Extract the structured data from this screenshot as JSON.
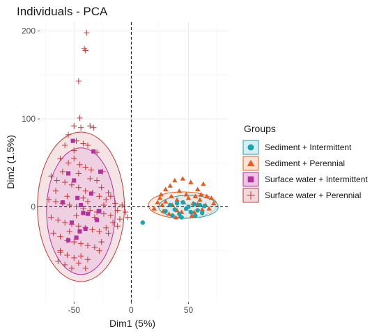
{
  "chart_data": {
    "type": "scatter",
    "title": "Individuals - PCA",
    "xlabel": "Dim1 (5%)",
    "ylabel": "Dim2 (1.5%)",
    "xlim": [
      -80,
      85
    ],
    "ylim": [
      -108,
      210
    ],
    "xticks": [
      "-50",
      "0",
      "50"
    ],
    "xtick_values": [
      -50,
      0,
      50
    ],
    "yticks": [
      "0",
      "100",
      "200"
    ],
    "ytick_values": [
      0,
      100,
      200
    ],
    "grid": true,
    "reference_lines": {
      "x": 0,
      "y": 0
    },
    "legend": {
      "title": "Groups",
      "placement": "right",
      "items": [
        {
          "label": "Sediment + Intermittent",
          "color": "#1AA3B0",
          "shape": "circle"
        },
        {
          "label": "Sediment + Perennial",
          "color": "#E8591E",
          "shape": "triangle"
        },
        {
          "label": "Surface water + Intermittent",
          "color": "#B4309E",
          "shape": "square"
        },
        {
          "label": "Surface water + Perennial",
          "color": "#C03A3A",
          "shape": "plus"
        }
      ]
    },
    "series": [
      {
        "name": "Sediment + Intermittent",
        "color": "#1AA3B0",
        "shape": "circle",
        "ellipse": {
          "cx": 50,
          "cy": 0,
          "rx": 26,
          "ry": 13,
          "fill": "#D6EEF1",
          "stroke": "#1AA3B0"
        },
        "points": [
          [
            10,
            -18
          ],
          [
            30,
            -5
          ],
          [
            34,
            2
          ],
          [
            38,
            -3
          ],
          [
            42,
            -8
          ],
          [
            45,
            5
          ],
          [
            48,
            -2
          ],
          [
            50,
            0
          ],
          [
            52,
            -6
          ],
          [
            55,
            3
          ],
          [
            58,
            -4
          ],
          [
            60,
            2
          ],
          [
            62,
            -7
          ],
          [
            44,
            -12
          ],
          [
            36,
            -10
          ],
          [
            64,
            1
          ],
          [
            40,
            4
          ],
          [
            56,
            -10
          ]
        ]
      },
      {
        "name": "Sediment + Perennial",
        "color": "#E8591E",
        "shape": "triangle",
        "ellipse": {
          "cx": 45,
          "cy": 2,
          "rx": 30,
          "ry": 15,
          "fill": "#FBE3D3",
          "stroke": "#E8591E"
        },
        "points": [
          [
            20,
            -2
          ],
          [
            23,
            5
          ],
          [
            25,
            10
          ],
          [
            26,
            14
          ],
          [
            28,
            -5
          ],
          [
            30,
            20
          ],
          [
            30,
            6
          ],
          [
            33,
            -8
          ],
          [
            35,
            12
          ],
          [
            36,
            2
          ],
          [
            38,
            30
          ],
          [
            40,
            8
          ],
          [
            40,
            -4
          ],
          [
            42,
            18
          ],
          [
            43,
            -10
          ],
          [
            45,
            32
          ],
          [
            46,
            5
          ],
          [
            48,
            14
          ],
          [
            48,
            -2
          ],
          [
            50,
            10
          ],
          [
            52,
            28
          ],
          [
            54,
            4
          ],
          [
            55,
            -6
          ],
          [
            56,
            12
          ],
          [
            58,
            3
          ],
          [
            58,
            20
          ],
          [
            60,
            8
          ],
          [
            62,
            -3
          ],
          [
            63,
            26
          ],
          [
            65,
            2
          ],
          [
            66,
            12
          ],
          [
            68,
            -2
          ],
          [
            70,
            10
          ],
          [
            72,
            4
          ],
          [
            27,
            2
          ],
          [
            34,
            24
          ],
          [
            44,
            -6
          ],
          [
            53,
            -10
          ],
          [
            61,
            14
          ],
          [
            39,
            -12
          ]
        ]
      },
      {
        "name": "Surface water + Intermittent",
        "color": "#B4309E",
        "shape": "square",
        "ellipse": {
          "cx": -44,
          "cy": -5,
          "rx": 30,
          "ry": 72,
          "fill": "#ECC6E0",
          "stroke": "#B4309E"
        },
        "points": [
          [
            -51,
            75
          ],
          [
            -33,
            63
          ],
          [
            -27,
            40
          ],
          [
            -55,
            38
          ],
          [
            -47,
            10
          ],
          [
            -44,
            2
          ],
          [
            -42,
            -7
          ],
          [
            -38,
            -8
          ],
          [
            -52,
            -18
          ],
          [
            -48,
            -35
          ],
          [
            -55,
            -38
          ],
          [
            -40,
            -25
          ],
          [
            -30,
            -15
          ],
          [
            -35,
            15
          ],
          [
            -60,
            5
          ],
          [
            -50,
            30
          ],
          [
            -28,
            -5
          ],
          [
            -45,
            -28
          ]
        ]
      },
      {
        "name": "Surface water + Perennial",
        "color": "#C03A3A",
        "shape": "plus",
        "ellipse": {
          "cx": -44,
          "cy": 0,
          "rx": 38,
          "ry": 85,
          "fill": "#F0D8DC",
          "stroke": "#C03A3A"
        },
        "points": [
          [
            -39,
            198
          ],
          [
            -41,
            180
          ],
          [
            -40,
            178
          ],
          [
            -46,
            143
          ],
          [
            -45,
            101
          ],
          [
            -50,
            92
          ],
          [
            -44,
            90
          ],
          [
            -36,
            92
          ],
          [
            -33,
            90
          ],
          [
            -55,
            82
          ],
          [
            -58,
            70
          ],
          [
            -48,
            75
          ],
          [
            -42,
            72
          ],
          [
            -38,
            70
          ],
          [
            -30,
            62
          ],
          [
            -62,
            55
          ],
          [
            -55,
            50
          ],
          [
            -50,
            55
          ],
          [
            -45,
            48
          ],
          [
            -40,
            45
          ],
          [
            -35,
            42
          ],
          [
            -25,
            40
          ],
          [
            -70,
            35
          ],
          [
            -65,
            30
          ],
          [
            -58,
            28
          ],
          [
            -52,
            25
          ],
          [
            -46,
            22
          ],
          [
            -40,
            18
          ],
          [
            -34,
            16
          ],
          [
            -28,
            12
          ],
          [
            -22,
            8
          ],
          [
            -18,
            12
          ],
          [
            -72,
            8
          ],
          [
            -66,
            6
          ],
          [
            -60,
            4
          ],
          [
            -54,
            2
          ],
          [
            -48,
            0
          ],
          [
            -42,
            -2
          ],
          [
            -36,
            -4
          ],
          [
            -30,
            -6
          ],
          [
            -24,
            -8
          ],
          [
            -18,
            -10
          ],
          [
            -12,
            -4
          ],
          [
            -5,
            -6
          ],
          [
            -8,
            2
          ],
          [
            -70,
            -12
          ],
          [
            -64,
            -15
          ],
          [
            -58,
            -18
          ],
          [
            -52,
            -20
          ],
          [
            -46,
            -22
          ],
          [
            -40,
            -24
          ],
          [
            -34,
            -26
          ],
          [
            -28,
            -28
          ],
          [
            -22,
            -24
          ],
          [
            -16,
            -18
          ],
          [
            -68,
            -30
          ],
          [
            -62,
            -34
          ],
          [
            -56,
            -38
          ],
          [
            -50,
            -40
          ],
          [
            -44,
            -42
          ],
          [
            -38,
            -44
          ],
          [
            -32,
            -46
          ],
          [
            -26,
            -40
          ],
          [
            -62,
            -50
          ],
          [
            -56,
            -55
          ],
          [
            -50,
            -58
          ],
          [
            -44,
            -56
          ],
          [
            -38,
            -60
          ],
          [
            -64,
            -62
          ],
          [
            -58,
            -66
          ],
          [
            -52,
            -70
          ],
          [
            -46,
            -64
          ],
          [
            -40,
            -70
          ],
          [
            -62,
            -52
          ],
          [
            -66,
            18
          ],
          [
            -30,
            30
          ],
          [
            -26,
            22
          ],
          [
            -50,
            64
          ],
          [
            -60,
            40
          ],
          [
            -36,
            32
          ],
          [
            -20,
            -30
          ],
          [
            -14,
            4
          ],
          [
            -10,
            -14
          ],
          [
            -56,
            12
          ],
          [
            -48,
            -10
          ],
          [
            -42,
            10
          ],
          [
            -32,
            -12
          ],
          [
            -24,
            2
          ],
          [
            -54,
            -28
          ],
          [
            -46,
            38
          ],
          [
            -38,
            6
          ],
          [
            -28,
            -50
          ],
          [
            -20,
            16
          ],
          [
            -12,
            -22
          ],
          [
            -3,
            -12
          ]
        ]
      }
    ]
  }
}
